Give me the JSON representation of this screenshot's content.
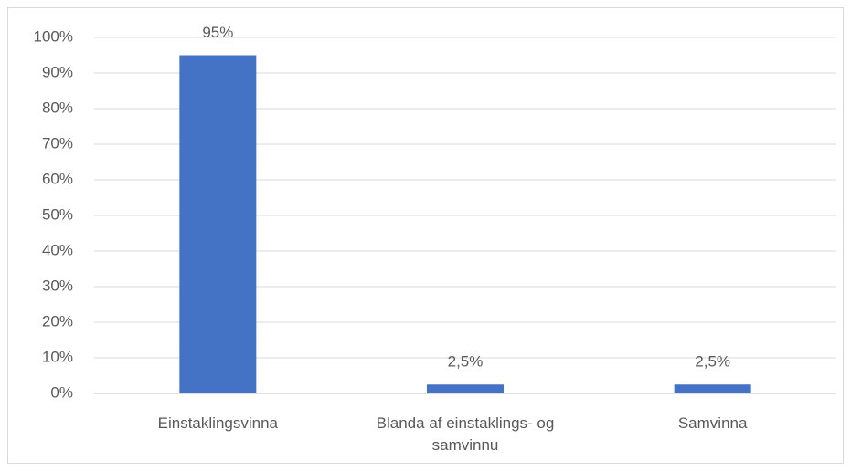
{
  "chart_data": {
    "type": "bar",
    "categories": [
      "Einstaklingsvinna",
      "Blanda af einstaklings- og samvinnu",
      "Samvinna"
    ],
    "values": [
      95,
      2.5,
      2.5
    ],
    "value_labels": [
      "95%",
      "2,5%",
      "2,5%"
    ],
    "color": "#4472c4",
    "ylim": [
      0,
      100
    ],
    "yticks": [
      {
        "value": 0,
        "label": "0%"
      },
      {
        "value": 10,
        "label": "10%"
      },
      {
        "value": 20,
        "label": "20%"
      },
      {
        "value": 30,
        "label": "30%"
      },
      {
        "value": 40,
        "label": "40%"
      },
      {
        "value": 50,
        "label": "50%"
      },
      {
        "value": 60,
        "label": "60%"
      },
      {
        "value": 70,
        "label": "70%"
      },
      {
        "value": 80,
        "label": "80%"
      },
      {
        "value": 90,
        "label": "90%"
      },
      {
        "value": 100,
        "label": "100%"
      }
    ],
    "grid": true
  }
}
